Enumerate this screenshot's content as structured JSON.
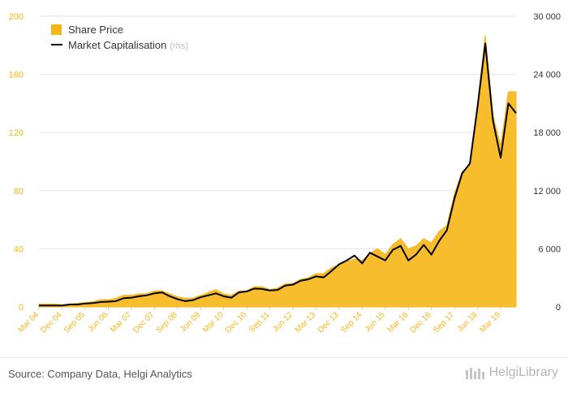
{
  "colors": {
    "share_price": "#F6B616",
    "market_cap": "#000000",
    "left_axis_text": "#F6B616",
    "right_axis_text": "#333333",
    "grid": "#e4e4e4"
  },
  "chart_data": {
    "type": "area",
    "grid": true,
    "legend_position": "top-left",
    "x": [
      "Mar 04",
      "Jun 04",
      "Sep 04",
      "Dec 04",
      "Mar 05",
      "Jun 05",
      "Sep 05",
      "Dec 05",
      "Mar 06",
      "Jun 06",
      "Sep 06",
      "Dec 06",
      "Mar 07",
      "Jun 07",
      "Sep 07",
      "Dec 07",
      "Mar 08",
      "Jun 08",
      "Sep 08",
      "Dec 08",
      "Mar 09",
      "Jun 09",
      "Sep 09",
      "Dec 09",
      "Mar 10",
      "Jun 10",
      "Sep 10",
      "Dec 10",
      "Mar 11",
      "Jun 11",
      "Sep 11",
      "Dec 11",
      "Mar 12",
      "Jun 12",
      "Sep 12",
      "Dec 12",
      "Mar 13",
      "Jun 13",
      "Sep 13",
      "Dec 13",
      "Mar 14",
      "Jun 14",
      "Sep 14",
      "Dec 14",
      "Mar 15",
      "Jun 15",
      "Sep 15",
      "Dec 15",
      "Mar 16",
      "Jun 16",
      "Sep 16",
      "Dec 16",
      "Mar 17",
      "Jun 17",
      "Sep 17",
      "Dec 17",
      "Mar 18",
      "Jun 18",
      "Sep 18",
      "Dec 18",
      "Mar 19",
      "Jun 19",
      "Sep 19"
    ],
    "x_tick_labels": [
      "Mar 04",
      "Dec 04",
      "Sep 05",
      "Jun 06",
      "Mar 07",
      "Dec 07",
      "Sep 08",
      "Jun 09",
      "Mar 10",
      "Dec 10",
      "Sep 11",
      "Jun 12",
      "Mar 13",
      "Dec 13",
      "Sep 14",
      "Jun 15",
      "Mar 16",
      "Dec 16",
      "Sep 17",
      "Jun 18",
      "Mar 19"
    ],
    "y_left": {
      "lim": [
        0,
        200
      ],
      "ticks": [
        "0",
        "40",
        "80",
        "120",
        "160",
        "200"
      ]
    },
    "y_right": {
      "lim": [
        0,
        30000
      ],
      "ticks": [
        "0",
        "6 000",
        "12 000",
        "18 000",
        "24 000",
        "30 000"
      ]
    },
    "series": [
      {
        "name": "Share Price",
        "axis": "left",
        "style": "area",
        "values": [
          2,
          2,
          2,
          1.5,
          2,
          2.5,
          3,
          3.5,
          5,
          5,
          6,
          8,
          8,
          9,
          9,
          11,
          11,
          9,
          7,
          6,
          6,
          8,
          10,
          12,
          9,
          8,
          11,
          11,
          14,
          14,
          12,
          13,
          16,
          16,
          19,
          20,
          23,
          23,
          27,
          29,
          31,
          33,
          32,
          37,
          40,
          36,
          43,
          47,
          40,
          42,
          47,
          44,
          52,
          56,
          78,
          93,
          97,
          140,
          187,
          132,
          111,
          148,
          148
        ],
        "y_label": "",
        "y_unit": ""
      },
      {
        "name": "Market Capitalisation",
        "name_suffix": "(rhs)",
        "axis": "right",
        "style": "line",
        "values": [
          150,
          150,
          150,
          150,
          250,
          250,
          350,
          400,
          500,
          550,
          600,
          900,
          950,
          1100,
          1200,
          1400,
          1500,
          1100,
          800,
          600,
          700,
          1000,
          1200,
          1400,
          1100,
          950,
          1500,
          1600,
          1900,
          1850,
          1700,
          1750,
          2200,
          2300,
          2700,
          2850,
          3150,
          3050,
          3700,
          4400,
          4800,
          5300,
          4500,
          5600,
          5200,
          4800,
          5900,
          6300,
          4800,
          5400,
          6400,
          5400,
          6800,
          7900,
          11200,
          13800,
          14800,
          20700,
          27200,
          19200,
          15400,
          21000,
          20000
        ]
      }
    ],
    "source": "Source: Company Data, Helgi Analytics",
    "logo_text": "HelgiLibrary"
  }
}
